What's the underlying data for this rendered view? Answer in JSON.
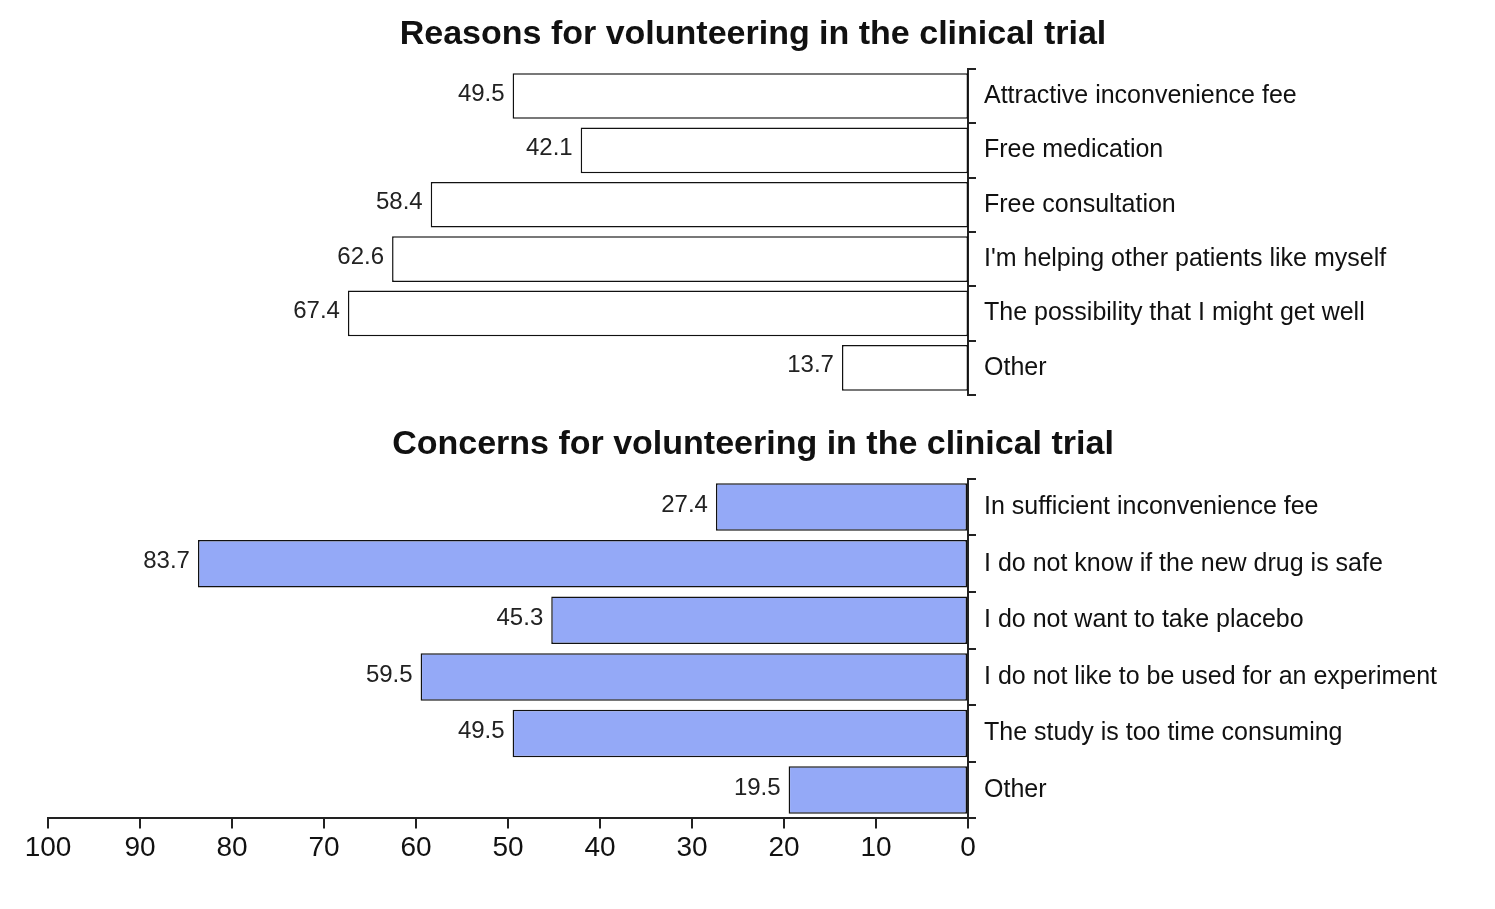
{
  "chart_data": [
    {
      "type": "bar",
      "orientation": "horizontal",
      "title": "Reasons for volunteering in the clinical trial",
      "categories": [
        "Attractive inconvenience fee",
        "Free medication",
        "Free consultation",
        "I'm helping other patients like myself",
        "The possibility that I might get well",
        "Other"
      ],
      "values": [
        49.5,
        42.1,
        58.4,
        62.6,
        67.4,
        13.7
      ],
      "color": "#ffffff",
      "xlim": [
        100,
        0
      ],
      "xticks": [
        100,
        90,
        80,
        70,
        60,
        50,
        40,
        30,
        20,
        10,
        0
      ],
      "tick_labels": "y",
      "data_labels": true,
      "legend": false,
      "grid": false
    },
    {
      "type": "bar",
      "orientation": "horizontal",
      "title": "Concerns for volunteering in the clinical trial",
      "categories": [
        "In sufficient inconvenience fee",
        "I do not know if the new drug is safe",
        "I do not want to take placebo",
        "I do not like to be used for an experiment",
        "The study is too time consuming",
        "Other"
      ],
      "values": [
        27.4,
        83.7,
        45.3,
        59.5,
        49.5,
        19.5
      ],
      "color": "#94a9f7",
      "xlim": [
        100,
        0
      ],
      "xticks": [
        100,
        90,
        80,
        70,
        60,
        50,
        40,
        30,
        20,
        10,
        0
      ],
      "data_labels": true,
      "legend": false,
      "grid": false
    }
  ]
}
